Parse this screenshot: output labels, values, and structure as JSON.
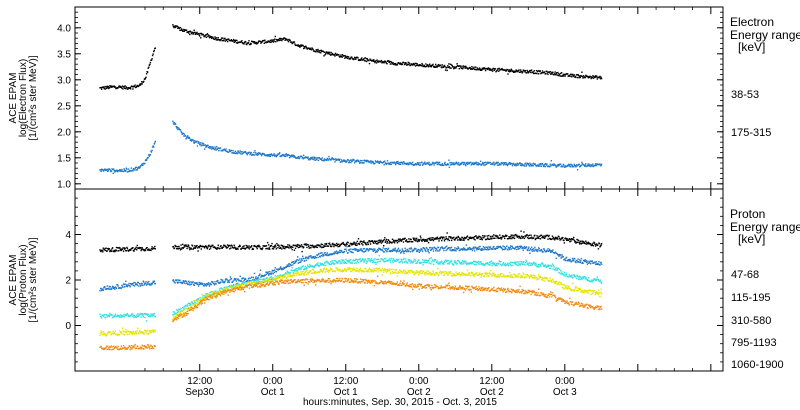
{
  "chart_data": [
    {
      "type": "scatter",
      "name": "electron",
      "ylabel": "ACE EPAM",
      "ylabel_sub": "log(Electron Flux)",
      "ylabel_unit": "[1/(cm²s ster MeV)]",
      "ylim": [
        0.9,
        4.4
      ],
      "yticks": [
        1.0,
        1.5,
        2.0,
        2.5,
        3.0,
        3.5,
        4.0
      ],
      "ytick_labels": [
        "1.0",
        "1.5",
        "2.0",
        "2.5",
        "3.0",
        "3.5",
        "4.0"
      ],
      "legend_title": [
        "Electron",
        "Energy ranges",
        "[keV]"
      ],
      "series": [
        {
          "name": "38-53",
          "color": "#000000",
          "points": [
            [
              -4.5,
              2.85
            ],
            [
              -2,
              2.88
            ],
            [
              0,
              2.86
            ],
            [
              2,
              2.9
            ],
            [
              3,
              3.05
            ],
            [
              3.8,
              3.35
            ],
            [
              4.5,
              3.62
            ],
            [
              7.5,
              4.05
            ],
            [
              9,
              3.97
            ],
            [
              12,
              3.88
            ],
            [
              15,
              3.8
            ],
            [
              18,
              3.75
            ],
            [
              20,
              3.72
            ],
            [
              24,
              3.76
            ],
            [
              26,
              3.8
            ],
            [
              28,
              3.68
            ],
            [
              31,
              3.58
            ],
            [
              36,
              3.45
            ],
            [
              40,
              3.38
            ],
            [
              44,
              3.33
            ],
            [
              48,
              3.3
            ],
            [
              54,
              3.26
            ],
            [
              60,
              3.21
            ],
            [
              66,
              3.17
            ],
            [
              70,
              3.14
            ],
            [
              72,
              3.1
            ],
            [
              76,
              3.07
            ],
            [
              78,
              3.05
            ]
          ]
        },
        {
          "name": "175-315",
          "color": "#1f78c8",
          "points": [
            [
              -4.5,
              1.28
            ],
            [
              -2,
              1.27
            ],
            [
              0,
              1.27
            ],
            [
              2,
              1.32
            ],
            [
              3,
              1.45
            ],
            [
              3.8,
              1.6
            ],
            [
              4.5,
              1.8
            ],
            [
              7.5,
              2.2
            ],
            [
              9,
              1.98
            ],
            [
              11,
              1.82
            ],
            [
              14,
              1.7
            ],
            [
              18,
              1.62
            ],
            [
              22,
              1.58
            ],
            [
              26,
              1.55
            ],
            [
              30,
              1.5
            ],
            [
              36,
              1.45
            ],
            [
              42,
              1.42
            ],
            [
              48,
              1.4
            ],
            [
              54,
              1.4
            ],
            [
              60,
              1.4
            ],
            [
              66,
              1.38
            ],
            [
              72,
              1.36
            ],
            [
              78,
              1.38
            ]
          ]
        }
      ]
    },
    {
      "type": "scatter",
      "name": "proton",
      "ylabel": "ACE EPAM",
      "ylabel_sub": "log(Proton Flux)",
      "ylabel_unit": "[1/(cm²s ster MeV)]",
      "ylim": [
        -2.0,
        6.0
      ],
      "yticks": [
        0,
        2,
        4
      ],
      "ytick_labels": [
        "0",
        "2",
        "4"
      ],
      "legend_title": [
        "Proton",
        "Energy ranges",
        "[keV]"
      ],
      "series": [
        {
          "name": "47-68",
          "color": "#000000",
          "points": [
            [
              -4.5,
              3.35
            ],
            [
              0,
              3.38
            ],
            [
              4.5,
              3.42
            ],
            [
              7.5,
              3.48
            ],
            [
              14,
              3.48
            ],
            [
              22,
              3.46
            ],
            [
              30,
              3.52
            ],
            [
              36,
              3.6
            ],
            [
              42,
              3.72
            ],
            [
              48,
              3.8
            ],
            [
              54,
              3.86
            ],
            [
              60,
              3.9
            ],
            [
              64,
              3.95
            ],
            [
              70,
              3.9
            ],
            [
              74,
              3.72
            ],
            [
              78,
              3.55
            ]
          ]
        },
        {
          "name": "115-195",
          "color": "#1f78c8",
          "points": [
            [
              -4.5,
              1.65
            ],
            [
              -2,
              1.72
            ],
            [
              0,
              1.8
            ],
            [
              2,
              1.85
            ],
            [
              4.5,
              1.92
            ],
            [
              7.5,
              1.98
            ],
            [
              10,
              1.9
            ],
            [
              13,
              1.82
            ],
            [
              16,
              2.0
            ],
            [
              20,
              2.05
            ],
            [
              24,
              2.4
            ],
            [
              28,
              2.85
            ],
            [
              32,
              3.15
            ],
            [
              36,
              3.3
            ],
            [
              40,
              3.35
            ],
            [
              46,
              3.35
            ],
            [
              52,
              3.4
            ],
            [
              58,
              3.42
            ],
            [
              64,
              3.45
            ],
            [
              70,
              3.3
            ],
            [
              72,
              2.95
            ],
            [
              76,
              2.8
            ],
            [
              78,
              2.75
            ]
          ]
        },
        {
          "name": "310-580",
          "color": "#33e0e0",
          "points": [
            [
              -4.5,
              0.45
            ],
            [
              0,
              0.45
            ],
            [
              4.5,
              0.48
            ],
            [
              7.5,
              0.55
            ],
            [
              10,
              0.9
            ],
            [
              13,
              1.35
            ],
            [
              16,
              1.65
            ],
            [
              20,
              1.9
            ],
            [
              24,
              2.1
            ],
            [
              28,
              2.5
            ],
            [
              32,
              2.75
            ],
            [
              36,
              2.85
            ],
            [
              42,
              2.9
            ],
            [
              48,
              2.85
            ],
            [
              54,
              2.8
            ],
            [
              60,
              2.75
            ],
            [
              66,
              2.75
            ],
            [
              70,
              2.6
            ],
            [
              72,
              2.25
            ],
            [
              76,
              2.05
            ],
            [
              78,
              2.0
            ]
          ]
        },
        {
          "name": "795-1193",
          "color": "#e5e500",
          "points": [
            [
              -4.5,
              -0.3
            ],
            [
              0,
              -0.3
            ],
            [
              4.5,
              -0.25
            ],
            [
              7.5,
              0.35
            ],
            [
              10,
              0.75
            ],
            [
              13,
              1.3
            ],
            [
              16,
              1.6
            ],
            [
              20,
              1.85
            ],
            [
              24,
              2.05
            ],
            [
              28,
              2.3
            ],
            [
              32,
              2.45
            ],
            [
              36,
              2.5
            ],
            [
              42,
              2.45
            ],
            [
              48,
              2.35
            ],
            [
              54,
              2.3
            ],
            [
              60,
              2.25
            ],
            [
              66,
              2.2
            ],
            [
              70,
              2.0
            ],
            [
              72,
              1.7
            ],
            [
              76,
              1.5
            ],
            [
              78,
              1.45
            ]
          ]
        },
        {
          "name": "1060-1900",
          "color": "#f08a10",
          "points": [
            [
              -4.5,
              -0.95
            ],
            [
              0,
              -0.95
            ],
            [
              4.5,
              -0.9
            ],
            [
              7.5,
              0.3
            ],
            [
              10,
              0.6
            ],
            [
              13,
              1.2
            ],
            [
              16,
              1.5
            ],
            [
              20,
              1.75
            ],
            [
              24,
              1.9
            ],
            [
              28,
              2.0
            ],
            [
              32,
              2.0
            ],
            [
              36,
              2.02
            ],
            [
              42,
              1.92
            ],
            [
              48,
              1.78
            ],
            [
              54,
              1.7
            ],
            [
              60,
              1.62
            ],
            [
              66,
              1.5
            ],
            [
              70,
              1.3
            ],
            [
              72,
              1.05
            ],
            [
              76,
              0.85
            ],
            [
              78,
              0.8
            ]
          ]
        }
      ]
    }
  ],
  "x_axis": {
    "xlim": [
      -8.5,
      98
    ],
    "unit": "hours since Sep 30 00:00",
    "ticks": [
      {
        "x": 12,
        "line1": "12:00",
        "line2": "Sep30"
      },
      {
        "x": 24,
        "line1": "0:00",
        "line2": "Oct 1"
      },
      {
        "x": 36,
        "line1": "12:00",
        "line2": "Oct 1"
      },
      {
        "x": 48,
        "line1": "0:00",
        "line2": "Oct 2"
      },
      {
        "x": 60,
        "line1": "12:00",
        "line2": "Oct 2"
      },
      {
        "x": 72,
        "line1": "0:00",
        "line2": "Oct 3"
      },
      {
        "x": 84,
        "line1": "",
        "line2": ""
      },
      {
        "x": 96,
        "line1": "",
        "line2": ""
      }
    ],
    "xlabel": "hours:minutes, Sep. 30, 2015 - Oct. 3, 2015"
  }
}
